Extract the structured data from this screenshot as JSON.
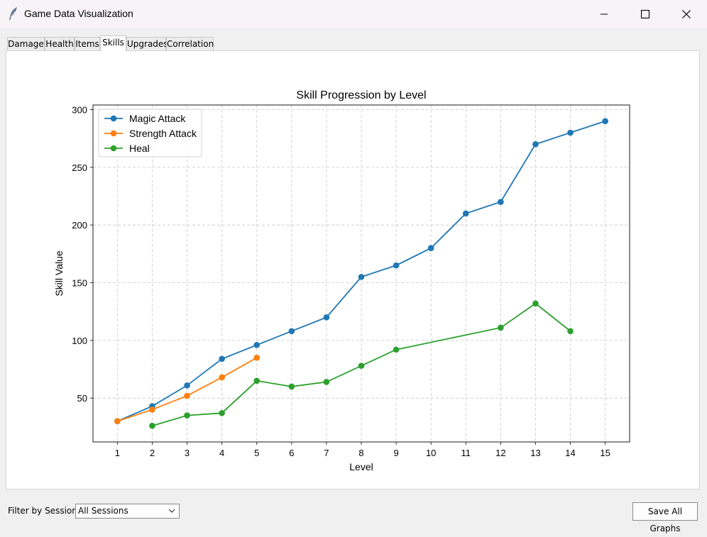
{
  "window": {
    "title": "Game Data Visualization",
    "icon": "feather-icon"
  },
  "tabs": [
    {
      "label": "Damage",
      "active": false
    },
    {
      "label": "Health",
      "active": false
    },
    {
      "label": "Items",
      "active": false
    },
    {
      "label": "Skills",
      "active": true
    },
    {
      "label": "Upgrades",
      "active": false
    },
    {
      "label": "Correlation",
      "active": false
    }
  ],
  "filter": {
    "label": "Filter by Session:",
    "selected": "All Sessions"
  },
  "save_button": {
    "label": "Save All Graphs"
  },
  "chart_data": {
    "type": "line",
    "title": "Skill Progression by Level",
    "xlabel": "Level",
    "ylabel": "Skill Value",
    "xlim": [
      0.3,
      15.7
    ],
    "ylim": [
      12,
      304
    ],
    "x_ticks": [
      1,
      2,
      3,
      4,
      5,
      6,
      7,
      8,
      9,
      10,
      11,
      12,
      13,
      14,
      15
    ],
    "y_ticks": [
      50,
      100,
      150,
      200,
      250,
      300
    ],
    "grid": true,
    "legend_position": "top-left",
    "series": [
      {
        "name": "Magic Attack",
        "color": "#1f77b4",
        "x": [
          1,
          2,
          3,
          4,
          5,
          6,
          7,
          8,
          9,
          10,
          11,
          12,
          13,
          14,
          15
        ],
        "y": [
          30,
          43,
          61,
          84,
          96,
          108,
          120,
          155,
          165,
          180,
          210,
          220,
          270,
          280,
          290
        ]
      },
      {
        "name": "Strength Attack",
        "color": "#ff7f0e",
        "x": [
          1,
          2,
          3,
          4,
          5
        ],
        "y": [
          30,
          40,
          52,
          68,
          85
        ]
      },
      {
        "name": "Heal",
        "color": "#2ca02c",
        "x": [
          2,
          3,
          4,
          5,
          6,
          7,
          8,
          9,
          12,
          13,
          14
        ],
        "y": [
          26,
          35,
          37,
          65,
          60,
          64,
          78,
          92,
          111,
          132,
          108
        ]
      }
    ]
  }
}
